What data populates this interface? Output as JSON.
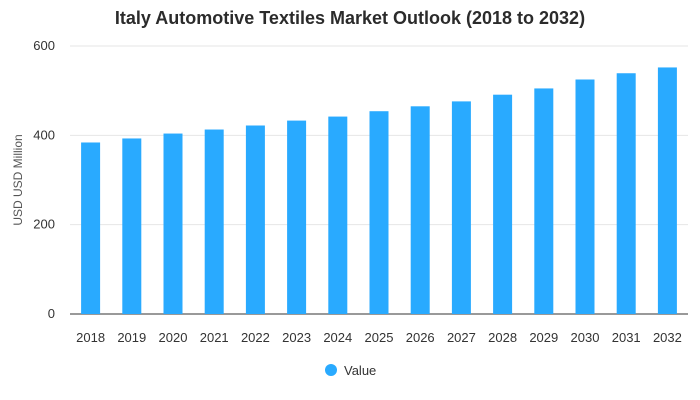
{
  "chart_data": {
    "type": "bar",
    "title": "Italy Automotive Textiles Market Outlook (2018 to 2032)",
    "xlabel": "",
    "ylabel": "USD USD Million",
    "categories": [
      "2018",
      "2019",
      "2020",
      "2021",
      "2022",
      "2023",
      "2024",
      "2025",
      "2026",
      "2027",
      "2028",
      "2029",
      "2030",
      "2031",
      "2032"
    ],
    "series": [
      {
        "name": "Value",
        "color": "#29aaff",
        "values": [
          384,
          393,
          404,
          413,
          422,
          433,
          442,
          454,
          465,
          476,
          491,
          505,
          525,
          539,
          552
        ]
      }
    ],
    "ylim": [
      0,
      600
    ],
    "yticks": [
      0,
      200,
      400,
      600
    ],
    "grid": true,
    "legend_position": "bottom"
  }
}
